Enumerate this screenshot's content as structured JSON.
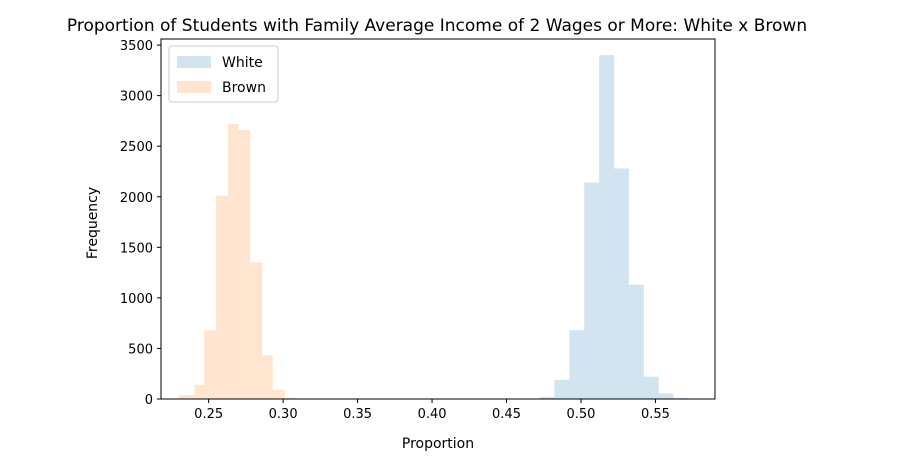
{
  "chart_data": {
    "type": "bar",
    "title": "Proportion of Students with Family Average Income of 2 Wages or More: White x Brown",
    "xlabel": "Proportion",
    "ylabel": "Frequency",
    "xlim": [
      0.218,
      0.59
    ],
    "ylim": [
      0,
      3560
    ],
    "xticks": [
      0.25,
      0.3,
      0.35,
      0.4,
      0.45,
      0.5,
      0.55
    ],
    "xtick_labels": [
      "0.25",
      "0.30",
      "0.35",
      "0.40",
      "0.45",
      "0.50",
      "0.55"
    ],
    "yticks": [
      0,
      500,
      1000,
      1500,
      2000,
      2500,
      3000,
      3500
    ],
    "ytick_labels": [
      "0",
      "500",
      "1000",
      "1500",
      "2000",
      "2500",
      "3000",
      "3500"
    ],
    "grid": false,
    "legend_position": "top-left",
    "series": [
      {
        "name": "White",
        "color": "#1f77b4",
        "alpha": 0.2,
        "bins": [
          {
            "x0": 0.4722,
            "x1": 0.4822,
            "count": 20
          },
          {
            "x0": 0.4822,
            "x1": 0.4922,
            "count": 190
          },
          {
            "x0": 0.4922,
            "x1": 0.5022,
            "count": 680
          },
          {
            "x0": 0.5022,
            "x1": 0.5122,
            "count": 2140
          },
          {
            "x0": 0.5122,
            "x1": 0.5222,
            "count": 3400
          },
          {
            "x0": 0.5222,
            "x1": 0.5322,
            "count": 2280
          },
          {
            "x0": 0.5322,
            "x1": 0.5422,
            "count": 1130
          },
          {
            "x0": 0.5422,
            "x1": 0.5522,
            "count": 220
          },
          {
            "x0": 0.5522,
            "x1": 0.5622,
            "count": 55
          },
          {
            "x0": 0.5622,
            "x1": 0.5722,
            "count": 10
          }
        ]
      },
      {
        "name": "Brown",
        "color": "#ff7f0e",
        "alpha": 0.2,
        "bins": [
          {
            "x0": 0.23,
            "x1": 0.2405,
            "count": 40
          },
          {
            "x0": 0.2405,
            "x1": 0.247,
            "count": 140
          },
          {
            "x0": 0.247,
            "x1": 0.255,
            "count": 680
          },
          {
            "x0": 0.255,
            "x1": 0.263,
            "count": 2010
          },
          {
            "x0": 0.263,
            "x1": 0.27,
            "count": 2720
          },
          {
            "x0": 0.27,
            "x1": 0.278,
            "count": 2660
          },
          {
            "x0": 0.278,
            "x1": 0.286,
            "count": 1350
          },
          {
            "x0": 0.286,
            "x1": 0.293,
            "count": 430
          },
          {
            "x0": 0.293,
            "x1": 0.301,
            "count": 90
          },
          {
            "x0": 0.301,
            "x1": 0.309,
            "count": 12
          }
        ]
      }
    ]
  }
}
